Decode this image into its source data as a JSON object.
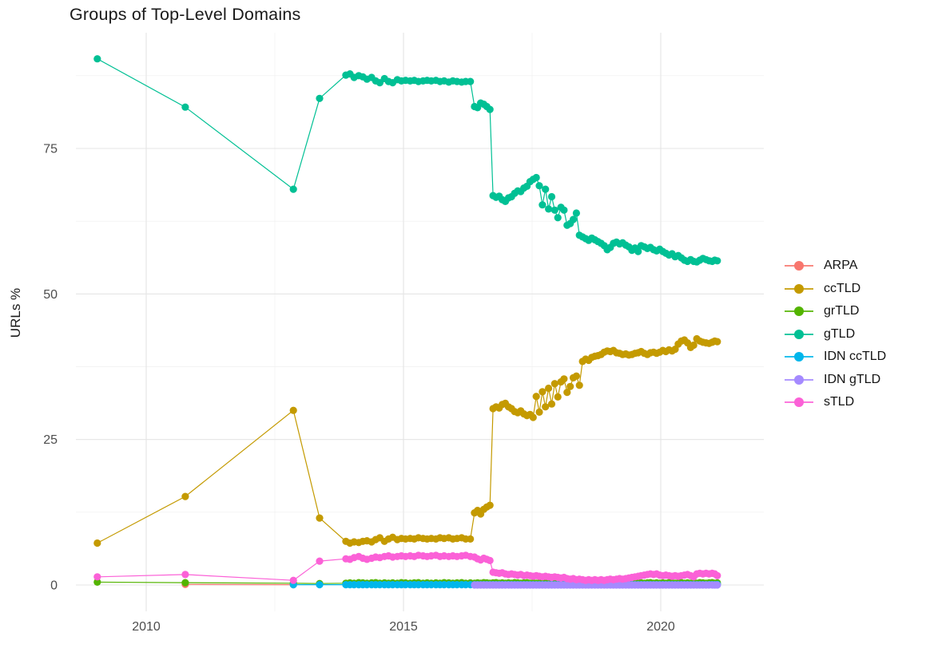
{
  "figure": {
    "title": "Groups of Top-Level Domains",
    "y_axis_title": "URLs %"
  },
  "legend": {
    "position": "right",
    "items": [
      {
        "label": "ARPA",
        "color": "#F8766D"
      },
      {
        "label": "ccTLD",
        "color": "#C49A00"
      },
      {
        "label": "grTLD",
        "color": "#53B400"
      },
      {
        "label": "gTLD",
        "color": "#00C094"
      },
      {
        "label": "IDN ccTLD",
        "color": "#00B6EB"
      },
      {
        "label": "IDN gTLD",
        "color": "#A58AFF"
      },
      {
        "label": "sTLD",
        "color": "#FB61D7"
      }
    ]
  },
  "chart_data": {
    "type": "line",
    "title": "Groups of Top-Level Domains",
    "xlabel": "",
    "ylabel": "URLs %",
    "xlim": [
      2008.6,
      2022.0
    ],
    "ylim": [
      -4.5,
      95
    ],
    "grid": true,
    "legend_position": "right",
    "x_ticks": [
      {
        "label": "2010",
        "value": 2010
      },
      {
        "label": "2015",
        "value": 2015
      },
      {
        "label": "2020",
        "value": 2020
      }
    ],
    "x_minor": [
      2012.5,
      2017.5
    ],
    "y_ticks": [
      {
        "label": "0",
        "value": 0
      },
      {
        "label": "25",
        "value": 25
      },
      {
        "label": "50",
        "value": 50
      },
      {
        "label": "75",
        "value": 75
      }
    ],
    "y_minor": [
      12.5,
      37.5,
      62.5,
      87.5
    ],
    "x_all": [
      2009.05,
      2010.76,
      2012.86,
      2013.37,
      2013.88,
      2013.96,
      2014.04,
      2014.13,
      2014.21,
      2014.29,
      2014.38,
      2014.46,
      2014.54,
      2014.63,
      2014.71,
      2014.79,
      2014.88,
      2014.96,
      2015.04,
      2015.13,
      2015.21,
      2015.29,
      2015.38,
      2015.46,
      2015.54,
      2015.63,
      2015.71,
      2015.79,
      2015.88,
      2015.96,
      2016.04,
      2016.13,
      2016.21,
      2016.3,
      2016.38,
      2016.44,
      2016.5,
      2016.56,
      2016.62,
      2016.68,
      2016.74,
      2016.8,
      2016.86,
      2016.92,
      2016.98,
      2017.04,
      2017.1,
      2017.16,
      2017.22,
      2017.28,
      2017.34,
      2017.4,
      2017.46,
      2017.52,
      2017.58,
      2017.64,
      2017.7,
      2017.76,
      2017.82,
      2017.88,
      2017.94,
      2018.0,
      2018.06,
      2018.12,
      2018.18,
      2018.24,
      2018.3,
      2018.36,
      2018.42,
      2018.48,
      2018.54,
      2018.6,
      2018.66,
      2018.72,
      2018.78,
      2018.84,
      2018.9,
      2018.96,
      2019.02,
      2019.08,
      2019.14,
      2019.2,
      2019.26,
      2019.32,
      2019.38,
      2019.44,
      2019.5,
      2019.56,
      2019.62,
      2019.68,
      2019.74,
      2019.8,
      2019.86,
      2019.92,
      2019.98,
      2020.04,
      2020.1,
      2020.16,
      2020.22,
      2020.28,
      2020.34,
      2020.4,
      2020.46,
      2020.52,
      2020.58,
      2020.64,
      2020.7,
      2020.76,
      2020.82,
      2020.88,
      2020.94,
      2021.0,
      2021.05,
      2021.1
    ],
    "series": [
      {
        "name": "ARPA",
        "color": "#F8766D",
        "start_index": 1,
        "y": [
          0.1,
          0.05
        ]
      },
      {
        "name": "ccTLD",
        "color": "#C49A00",
        "start_index": 0,
        "y": [
          7.2,
          15.2,
          30.0,
          11.5,
          7.5,
          7.2,
          7.4,
          7.3,
          7.5,
          7.6,
          7.4,
          7.8,
          8.1,
          7.5,
          7.9,
          8.2,
          7.8,
          8.0,
          7.9,
          8.0,
          7.9,
          8.1,
          8.0,
          7.9,
          8.0,
          7.9,
          8.1,
          8.0,
          8.1,
          7.9,
          8.0,
          8.1,
          7.9,
          7.9,
          12.4,
          12.8,
          12.2,
          13.0,
          13.4,
          13.7,
          30.3,
          30.6,
          30.4,
          31.0,
          31.2,
          30.6,
          30.3,
          29.8,
          29.6,
          29.9,
          29.4,
          29.1,
          29.3,
          28.8,
          32.4,
          29.7,
          33.2,
          30.6,
          33.8,
          31.1,
          34.6,
          32.3,
          34.9,
          35.4,
          33.1,
          34.1,
          35.6,
          35.9,
          34.3,
          38.4,
          38.8,
          38.6,
          39.1,
          39.3,
          39.4,
          39.6,
          40.0,
          40.2,
          40.1,
          40.3,
          39.9,
          39.8,
          39.6,
          39.7,
          39.5,
          39.6,
          39.8,
          39.9,
          40.1,
          39.8,
          39.6,
          39.9,
          40.0,
          39.8,
          40.0,
          40.3,
          40.1,
          40.4,
          40.2,
          40.5,
          41.4,
          41.9,
          42.1,
          41.6,
          40.8,
          41.2,
          42.3,
          41.9,
          41.7,
          41.6,
          41.5,
          41.7,
          41.9,
          41.8
        ]
      },
      {
        "name": "grTLD",
        "color": "#53B400",
        "start_index": 0,
        "y": [
          0.5,
          0.4,
          0.3,
          0.25,
          0.3,
          0.35,
          0.3,
          0.4,
          0.35,
          0.3,
          0.35,
          0.4,
          0.3,
          0.35,
          0.3,
          0.35,
          0.3,
          0.4,
          0.35,
          0.3,
          0.35,
          0.4,
          0.3,
          0.35,
          0.3,
          0.35,
          0.3,
          0.4,
          0.35,
          0.3,
          0.35,
          0.4,
          0.3,
          0.35,
          0.3,
          0.35,
          0.3,
          0.4,
          0.35,
          0.3,
          0.35,
          0.4,
          0.3,
          0.35,
          0.3,
          0.35,
          0.3,
          0.4,
          0.35,
          0.3,
          0.35,
          0.4,
          0.3,
          0.35,
          0.3,
          0.35,
          0.3,
          0.4,
          0.35,
          0.3,
          0.35,
          0.4,
          0.3,
          0.35,
          0.3,
          0.35,
          0.3,
          0.4,
          0.35,
          0.3,
          0.35,
          0.4,
          0.3,
          0.35,
          0.3,
          0.35,
          0.3,
          0.4,
          0.35,
          0.3,
          0.35,
          0.4,
          0.3,
          0.35,
          0.3,
          0.35,
          0.3,
          0.4,
          0.35,
          0.3,
          0.35,
          0.4,
          0.3,
          0.35,
          0.3,
          0.35,
          0.3,
          0.4,
          0.35,
          0.3,
          0.35,
          0.4,
          0.3,
          0.35,
          0.3,
          0.35,
          0.3,
          0.4,
          0.35,
          0.3,
          0.35,
          0.4,
          0.3,
          0.35
        ]
      },
      {
        "name": "gTLD",
        "color": "#00C094",
        "start_index": 0,
        "y": [
          90.4,
          82.1,
          68.0,
          83.6,
          87.6,
          87.8,
          87.2,
          87.5,
          87.3,
          86.9,
          87.2,
          86.6,
          86.3,
          87.0,
          86.5,
          86.3,
          86.8,
          86.6,
          86.7,
          86.6,
          86.7,
          86.5,
          86.6,
          86.7,
          86.6,
          86.7,
          86.5,
          86.6,
          86.4,
          86.6,
          86.5,
          86.4,
          86.5,
          86.5,
          82.2,
          82.0,
          82.8,
          82.6,
          82.2,
          81.7,
          66.9,
          66.6,
          66.8,
          66.2,
          65.9,
          66.5,
          66.7,
          67.3,
          67.7,
          67.6,
          68.2,
          68.5,
          69.3,
          69.7,
          70.0,
          68.6,
          65.3,
          68.0,
          64.6,
          66.7,
          64.4,
          63.1,
          64.9,
          64.4,
          61.8,
          62.1,
          62.8,
          63.9,
          60.1,
          59.8,
          59.5,
          59.2,
          59.6,
          59.3,
          59.0,
          58.7,
          58.3,
          57.6,
          58.0,
          58.7,
          58.9,
          58.6,
          58.8,
          58.4,
          58.1,
          57.5,
          57.9,
          57.3,
          58.3,
          58.1,
          57.8,
          58.0,
          57.6,
          57.4,
          57.7,
          57.3,
          57.0,
          56.7,
          56.9,
          56.4,
          56.6,
          56.2,
          55.8,
          55.6,
          55.9,
          55.6,
          55.5,
          55.8,
          56.1,
          55.9,
          55.7,
          55.6,
          55.8,
          55.7
        ]
      },
      {
        "name": "IDN ccTLD",
        "color": "#00B6EB",
        "start_index": 2,
        "y_rle": [
          [
            0.05,
            111
          ],
          [
            0.1,
            1
          ]
        ]
      },
      {
        "name": "IDN gTLD",
        "color": "#A58AFF",
        "start_index": 34,
        "y_rle": [
          [
            0.0,
            80
          ]
        ]
      },
      {
        "name": "sTLD",
        "color": "#FB61D7",
        "start_index": 0,
        "y": [
          1.4,
          1.8,
          0.8,
          4.1,
          4.5,
          4.4,
          4.7,
          4.9,
          4.6,
          4.4,
          4.6,
          4.8,
          4.7,
          4.9,
          5.0,
          4.8,
          4.9,
          5.0,
          4.9,
          5.0,
          4.9,
          5.1,
          5.0,
          4.9,
          5.0,
          5.1,
          4.9,
          5.0,
          4.9,
          5.0,
          4.9,
          5.0,
          5.1,
          4.9,
          4.8,
          4.5,
          4.3,
          4.6,
          4.4,
          4.2,
          2.2,
          2.1,
          2.0,
          2.1,
          1.9,
          1.8,
          1.9,
          1.8,
          1.7,
          1.8,
          1.6,
          1.7,
          1.6,
          1.5,
          1.6,
          1.5,
          1.4,
          1.5,
          1.4,
          1.3,
          1.4,
          1.3,
          1.2,
          1.3,
          1.1,
          1.0,
          1.1,
          0.9,
          1.0,
          0.9,
          0.8,
          0.9,
          0.8,
          0.9,
          0.8,
          0.9,
          0.8,
          0.9,
          1.0,
          0.9,
          1.0,
          1.1,
          1.0,
          1.1,
          1.2,
          1.3,
          1.4,
          1.5,
          1.6,
          1.7,
          1.8,
          1.9,
          1.8,
          1.9,
          1.7,
          1.6,
          1.7,
          1.6,
          1.5,
          1.6,
          1.5,
          1.6,
          1.7,
          1.8,
          1.6,
          1.4,
          1.9,
          2.0,
          1.9,
          2.0,
          1.9,
          2.0,
          1.9,
          1.6
        ]
      }
    ]
  }
}
